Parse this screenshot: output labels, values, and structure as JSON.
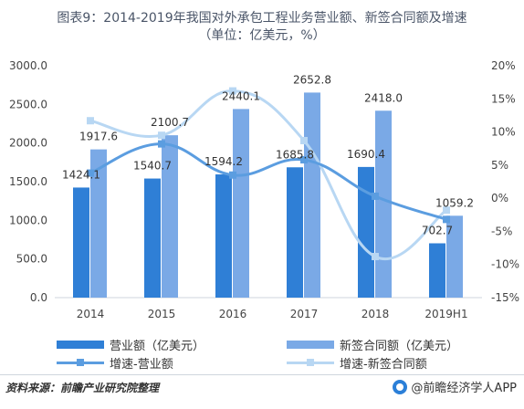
{
  "title": {
    "line1": "图表9：2014-2019年我国对外承包工程业务营业额、新签合同额及增速",
    "line2": "（单位：亿美元，%）"
  },
  "legend": {
    "revenue": "营业额（亿美元）",
    "contracts": "新签合同额（亿美元）",
    "revenue_growth": "增速-营业额",
    "contracts_growth": "增速-新签合同额"
  },
  "footer": {
    "source": "资料来源：前瞻产业研究院整理",
    "brand": "@前瞻经济学人APP"
  },
  "colors": {
    "revenue_bar": "#2f7fd6",
    "contracts_bar": "#7aa9e6",
    "revenue_growth_line": "#5b9de0",
    "contracts_growth_line": "#b8d7f3",
    "axis_text": "#444444"
  },
  "chart_data": {
    "type": "bar",
    "categories": [
      "2014",
      "2015",
      "2016",
      "2017",
      "2018",
      "2019H1"
    ],
    "series": [
      {
        "name": "营业额（亿美元）",
        "type": "bar",
        "axis": "left",
        "values": [
          1424.1,
          1540.7,
          1594.2,
          1685.8,
          1690.4,
          702.7
        ],
        "labels": [
          "1424.1",
          "1540.7",
          "1594.2",
          "1685.8",
          "1690.4",
          "702.7"
        ]
      },
      {
        "name": "新签合同额（亿美元）",
        "type": "bar",
        "axis": "left",
        "values": [
          1917.6,
          2100.7,
          2440.1,
          2652.8,
          2418.0,
          1059.2
        ],
        "labels": [
          "1917.6",
          "2100.7",
          "2440.1",
          "2652.8",
          "2418.0",
          "1059.2"
        ]
      },
      {
        "name": "增速-营业额",
        "type": "line",
        "axis": "right",
        "values": [
          3.8,
          8.2,
          3.5,
          5.8,
          0.3,
          -3.2
        ]
      },
      {
        "name": "增速-新签合同额",
        "type": "line",
        "axis": "right",
        "values": [
          11.7,
          9.5,
          16.2,
          8.7,
          -8.8,
          -1.8
        ]
      }
    ],
    "y_left": {
      "range": [
        0,
        3000
      ],
      "ticks": [
        "0.0",
        "500.0",
        "1000.0",
        "1500.0",
        "2000.0",
        "2500.0",
        "3000.0"
      ]
    },
    "y_right": {
      "range": [
        -15,
        20
      ],
      "ticks": [
        "-15%",
        "-10%",
        "-5%",
        "0%",
        "5%",
        "10%",
        "15%",
        "20%"
      ]
    },
    "grid": false,
    "legend_position": "bottom"
  }
}
